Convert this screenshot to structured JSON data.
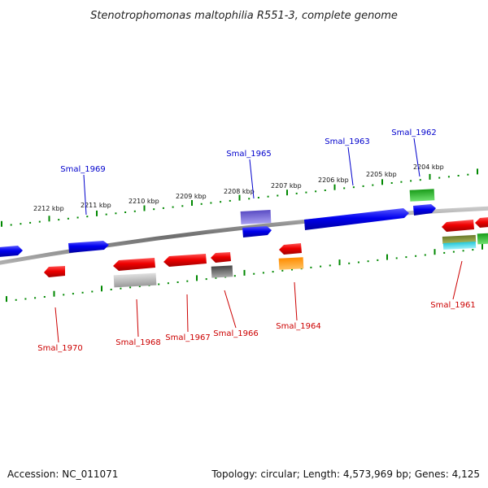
{
  "title": "Stenotrophomonas maltophilia R551-3, complete genome",
  "footer": {
    "accession": "Accession: NC_011071",
    "stats": "Topology: circular; Length: 4,573,969 bp; Genes: 4,125"
  },
  "colors": {
    "forward_label": "#0000cc",
    "reverse_label": "#cc0000",
    "backbone": "#7a7a7a",
    "ticks": "#008800"
  },
  "scale": {
    "ticks": [
      {
        "label": "2212 kbp"
      },
      {
        "label": "2211 kbp"
      },
      {
        "label": "2210 kbp"
      },
      {
        "label": "2209 kbp"
      },
      {
        "label": "2208 kbp"
      },
      {
        "label": "2207 kbp"
      },
      {
        "label": "2206 kbp"
      },
      {
        "label": "2205 kbp"
      },
      {
        "label": "2204 kbp"
      }
    ]
  },
  "gene_labels": [
    {
      "name": "Smal_1969",
      "strand": "forward"
    },
    {
      "name": "Smal_1965",
      "strand": "forward"
    },
    {
      "name": "Smal_1963",
      "strand": "forward"
    },
    {
      "name": "Smal_1962",
      "strand": "forward"
    },
    {
      "name": "Smal_1970",
      "strand": "reverse"
    },
    {
      "name": "Smal_1968",
      "strand": "reverse"
    },
    {
      "name": "Smal_1967",
      "strand": "reverse"
    },
    {
      "name": "Smal_1966",
      "strand": "reverse"
    },
    {
      "name": "Smal_1964",
      "strand": "reverse"
    },
    {
      "name": "Smal_1961",
      "strand": "reverse"
    }
  ]
}
